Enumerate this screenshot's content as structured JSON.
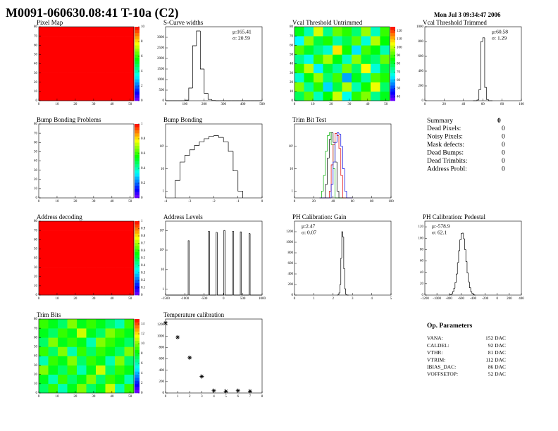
{
  "header": {
    "title": "M0091-060630.08:41 T-10a (C2)",
    "date": "Mon Jul  3 09:34:47 2006"
  },
  "chart_data": [
    {
      "type": "heatmap",
      "title": "Pixel Map",
      "xlim": [
        0,
        52
      ],
      "ylim": [
        0,
        80
      ],
      "xticks": [
        0,
        10,
        20,
        30,
        40,
        50
      ],
      "yticks": [
        0,
        10,
        20,
        30,
        40,
        50,
        60,
        70,
        80
      ],
      "zlim": [
        0,
        10
      ],
      "zticks": [
        0,
        2,
        4,
        6,
        8,
        10
      ],
      "z": [
        [
          10,
          10,
          10,
          10,
          10,
          10,
          10,
          10,
          10,
          10
        ],
        [
          10,
          10,
          10,
          10,
          10,
          10,
          10,
          10,
          10,
          10
        ],
        [
          10,
          10,
          10,
          10,
          10,
          10,
          10,
          10,
          10,
          10
        ],
        [
          10,
          10,
          10,
          10,
          10,
          10,
          10,
          10,
          10,
          10
        ],
        [
          10,
          10,
          10,
          10,
          10,
          10,
          10,
          10,
          10,
          10
        ],
        [
          10,
          10,
          10,
          10,
          10,
          10,
          10,
          10,
          10,
          10
        ],
        [
          10,
          10,
          10,
          10,
          10,
          10,
          10,
          10,
          10,
          10
        ],
        [
          10,
          10,
          10,
          10,
          10,
          10,
          10,
          10,
          10,
          10
        ]
      ]
    },
    {
      "type": "histogram",
      "title": "S-Curve widths",
      "color": "#000000",
      "xlim": [
        0,
        500
      ],
      "ylim": [
        0,
        3500
      ],
      "xticks": [
        0,
        100,
        200,
        300,
        400,
        500
      ],
      "yticks": [
        0,
        500,
        1000,
        1500,
        2000,
        2500,
        3000
      ],
      "bins": [
        0,
        20,
        40,
        60,
        80,
        100,
        120,
        140,
        160,
        180,
        200,
        220,
        240,
        260,
        280,
        300,
        320,
        340,
        360,
        380,
        400,
        420,
        440,
        460,
        480,
        500
      ],
      "values": [
        0,
        0,
        0,
        0,
        0,
        30,
        600,
        2600,
        3300,
        1500,
        350,
        60,
        10,
        0,
        0,
        0,
        0,
        0,
        0,
        0,
        0,
        0,
        0,
        0,
        0
      ],
      "stats": [
        "μ:165.41",
        "σ: 20.59"
      ]
    },
    {
      "type": "heatmap",
      "title": "Vcal Threshold Untrimmed",
      "xlim": [
        0,
        52
      ],
      "ylim": [
        0,
        80
      ],
      "xticks": [
        0,
        10,
        20,
        30,
        40,
        50
      ],
      "yticks": [
        0,
        10,
        20,
        30,
        40,
        50,
        60,
        70,
        80
      ],
      "zlim": [
        35,
        125
      ],
      "zticks": [
        40,
        50,
        60,
        70,
        80,
        90,
        100,
        110,
        120
      ],
      "z": [
        [
          78,
          92,
          70,
          85,
          101,
          66,
          88,
          95,
          74,
          83
        ],
        [
          95,
          73,
          88,
          62,
          80,
          99,
          71,
          86,
          104,
          77
        ],
        [
          69,
          84,
          97,
          76,
          90,
          58,
          83,
          72,
          91,
          87
        ],
        [
          88,
          100,
          64,
          81,
          73,
          94,
          77,
          105,
          68,
          80
        ],
        [
          74,
          67,
          89,
          98,
          84,
          70,
          96,
          81,
          76,
          93
        ],
        [
          91,
          82,
          75,
          69,
          107,
          86,
          63,
          90,
          84,
          71
        ],
        [
          65,
          96,
          80,
          87,
          72,
          79,
          92,
          68,
          99,
          85
        ],
        [
          83,
          71,
          102,
          74,
          93,
          88,
          76,
          97,
          70,
          89
        ]
      ]
    },
    {
      "type": "histogram",
      "title": "Vcal Threshold Trimmed",
      "color": "#000000",
      "xlim": [
        0,
        100
      ],
      "ylim": [
        0,
        1000
      ],
      "xticks": [
        0,
        20,
        40,
        60,
        80,
        100
      ],
      "yticks": [
        0,
        200,
        400,
        600,
        800,
        1000
      ],
      "bins": [
        50,
        52,
        54,
        56,
        58,
        60,
        62,
        64,
        66,
        68,
        70
      ],
      "values": [
        0,
        0,
        10,
        150,
        800,
        850,
        180,
        15,
        0,
        0
      ],
      "stats": [
        "μ:60.58",
        "σ: 1.29"
      ]
    },
    {
      "type": "heatmap",
      "title": "Bump Bonding Problems",
      "xlim": [
        0,
        52
      ],
      "ylim": [
        0,
        80
      ],
      "xticks": [
        0,
        10,
        20,
        30,
        40,
        50
      ],
      "yticks": [
        0,
        10,
        20,
        30,
        40,
        50,
        60,
        70,
        80
      ],
      "zlim": [
        0,
        1
      ],
      "zticks": [
        0,
        0.2,
        0.4,
        0.6,
        0.8,
        1
      ]
    },
    {
      "type": "histogram",
      "title": "Bump Bonding",
      "color": "#000000",
      "log_y": true,
      "xlim": [
        -4,
        0
      ],
      "ylim": [
        0.5,
        1000
      ],
      "xticks": [
        -4,
        -3,
        -2,
        -1,
        0
      ],
      "yticks": [
        1,
        10,
        {
          "value": 100,
          "label": "10²"
        }
      ],
      "bins": [
        -3.6,
        -3.4,
        -3.2,
        -3,
        -2.8,
        -2.6,
        -2.4,
        -2.2,
        -2,
        -1.8,
        -1.6,
        -1.4,
        -1.2,
        -1,
        -0.8
      ],
      "values": [
        3,
        20,
        40,
        70,
        110,
        160,
        220,
        280,
        300,
        250,
        160,
        60,
        8,
        1
      ]
    },
    {
      "type": "histogram",
      "title": "Trim Bit Test",
      "log_y": true,
      "xlim": [
        0,
        100
      ],
      "ylim": [
        0.5,
        1000
      ],
      "xticks": [
        0,
        20,
        40,
        60,
        80,
        100
      ],
      "yticks": [
        1,
        10,
        {
          "value": 100,
          "label": "10²"
        }
      ],
      "bins": [
        26,
        28,
        30,
        32,
        34,
        36,
        38,
        40,
        42,
        44,
        46,
        48,
        50,
        52,
        54,
        56,
        58,
        60
      ],
      "series": [
        {
          "color": "#000000",
          "values": [
            0,
            0,
            0,
            2,
            30,
            200,
            400,
            150,
            20,
            1,
            0,
            0,
            0,
            0,
            0,
            0,
            0
          ]
        },
        {
          "color": "#00b000",
          "values": [
            0,
            1,
            5,
            60,
            300,
            400,
            120,
            10,
            0,
            0,
            0,
            0,
            0,
            0,
            0,
            0,
            0
          ]
        },
        {
          "color": "#e00000",
          "values": [
            0,
            0,
            0,
            0,
            0,
            1,
            15,
            120,
            380,
            300,
            80,
            5,
            0,
            0,
            0,
            0,
            0
          ]
        },
        {
          "color": "#0000e0",
          "values": [
            0,
            0,
            0,
            0,
            0,
            0,
            2,
            20,
            150,
            400,
            350,
            100,
            10,
            1,
            0,
            0,
            0
          ]
        }
      ]
    },
    {
      "type": "heatmap",
      "title": "Address decoding",
      "xlim": [
        0,
        52
      ],
      "ylim": [
        0,
        80
      ],
      "xticks": [
        0,
        10,
        20,
        30,
        40,
        50
      ],
      "yticks": [
        0,
        10,
        20,
        30,
        40,
        50,
        60,
        70,
        80
      ],
      "zlim": [
        0,
        1
      ],
      "zticks": [
        0,
        0.1,
        0.2,
        0.3,
        0.4,
        0.5,
        0.6,
        0.7,
        0.8,
        0.9,
        1
      ],
      "z": [
        [
          1,
          1,
          1,
          1,
          1,
          1,
          1,
          1,
          1,
          1
        ],
        [
          1,
          1,
          1,
          1,
          1,
          1,
          1,
          1,
          1,
          1
        ],
        [
          1,
          1,
          1,
          1,
          1,
          1,
          1,
          1,
          1,
          1
        ],
        [
          1,
          1,
          1,
          1,
          1,
          1,
          1,
          1,
          1,
          1
        ],
        [
          1,
          1,
          1,
          1,
          1,
          1,
          1,
          1,
          1,
          1
        ],
        [
          1,
          1,
          1,
          1,
          1,
          1,
          1,
          1,
          1,
          1
        ],
        [
          1,
          1,
          1,
          1,
          1,
          1,
          1,
          1,
          1,
          1
        ],
        [
          1,
          1,
          1,
          1,
          1,
          1,
          1,
          1,
          1,
          1
        ]
      ]
    },
    {
      "type": "histogram",
      "title": "Address Levels",
      "color": "#000000",
      "log_y": true,
      "xlim": [
        -1500,
        1000
      ],
      "ylim": [
        0.5,
        3000
      ],
      "xticks": [
        -1500,
        -1000,
        -500,
        0,
        500,
        1000
      ],
      "yticks": [
        1,
        10,
        {
          "value": 100,
          "label": "10²"
        },
        {
          "value": 1000,
          "label": "10³"
        }
      ],
      "bins": [
        -1500,
        -915,
        -885,
        -390,
        -360,
        -190,
        -160,
        10,
        40,
        235,
        265,
        435,
        465,
        660,
        690,
        1000
      ],
      "values": [
        0,
        300,
        0,
        900,
        0,
        800,
        0,
        1000,
        0,
        900,
        0,
        850,
        0,
        700,
        0
      ]
    },
    {
      "type": "histogram",
      "title": "PH Calibration: Gain",
      "color": "#000000",
      "xlim": [
        0,
        5
      ],
      "ylim": [
        0,
        1400
      ],
      "xticks": [
        0,
        1,
        2,
        3,
        4,
        5
      ],
      "yticks": [
        0,
        200,
        400,
        600,
        800,
        1000,
        1200
      ],
      "bins": [
        2.2,
        2.25,
        2.3,
        2.35,
        2.4,
        2.45,
        2.5,
        2.55,
        2.6,
        2.65,
        2.7,
        2.75,
        2.8
      ],
      "values": [
        0,
        5,
        40,
        200,
        700,
        1200,
        1100,
        500,
        120,
        15,
        2,
        0
      ],
      "stats": [
        "μ:2.47",
        "σ: 0.07"
      ]
    },
    {
      "type": "histogram",
      "title": "PH Calibration: Pedestal",
      "color": "#000000",
      "xlim": [
        -1200,
        400
      ],
      "ylim": [
        0,
        130
      ],
      "xticks": [
        -1200,
        -1000,
        -800,
        -600,
        -400,
        -200,
        0,
        200,
        400
      ],
      "yticks": [
        0,
        20,
        40,
        60,
        80,
        100,
        120
      ],
      "bins": [
        -800,
        -780,
        -760,
        -740,
        -720,
        -700,
        -680,
        -660,
        -640,
        -620,
        -600,
        -580,
        -560,
        -540,
        -520,
        -500,
        -480,
        -460,
        -440,
        -420,
        -400,
        -380,
        -360
      ],
      "values": [
        0,
        1,
        2,
        6,
        12,
        22,
        37,
        57,
        78,
        97,
        108,
        109,
        99,
        80,
        59,
        39,
        23,
        13,
        6,
        3,
        1,
        0
      ],
      "stats": [
        "μ:-578.9",
        "σ: 62.1"
      ]
    },
    {
      "type": "heatmap",
      "title": "Trim Bits",
      "xlim": [
        0,
        52
      ],
      "ylim": [
        0,
        80
      ],
      "xticks": [
        0,
        10,
        20,
        30,
        40,
        50
      ],
      "yticks": [
        0,
        10,
        20,
        30,
        40,
        50,
        60,
        70,
        80
      ],
      "zlim": [
        0,
        15
      ],
      "zticks": [
        0,
        2,
        4,
        6,
        8,
        10,
        12,
        14
      ],
      "z": [
        [
          7,
          9,
          6,
          8,
          10,
          7,
          8,
          11,
          6,
          9
        ],
        [
          8,
          6,
          9,
          7,
          8,
          10,
          7,
          9,
          8,
          6
        ],
        [
          10,
          8,
          7,
          9,
          6,
          8,
          11,
          7,
          9,
          8
        ],
        [
          6,
          9,
          8,
          10,
          7,
          9,
          8,
          6,
          10,
          7
        ],
        [
          9,
          7,
          10,
          6,
          9,
          7,
          9,
          8,
          7,
          10
        ],
        [
          7,
          10,
          8,
          9,
          8,
          6,
          10,
          9,
          8,
          7
        ],
        [
          8,
          7,
          9,
          8,
          11,
          8,
          7,
          10,
          9,
          8
        ],
        [
          9,
          8,
          7,
          10,
          8,
          9,
          8,
          7,
          6,
          9
        ]
      ]
    },
    {
      "type": "scatter",
      "title": "Temperature calibration",
      "color": "#000000",
      "xlim": [
        0,
        8
      ],
      "ylim": [
        0,
        1300
      ],
      "xticks": [
        0,
        1,
        2,
        3,
        4,
        5,
        6,
        7,
        8
      ],
      "yticks": [
        0,
        200,
        400,
        600,
        800,
        1000,
        1200
      ],
      "x": [
        0,
        1,
        2,
        3,
        4,
        5,
        6,
        7
      ],
      "values": [
        1230,
        980,
        620,
        290,
        40,
        30,
        40,
        30
      ]
    }
  ],
  "summary": {
    "title": "Summary",
    "count": 0,
    "rows": [
      {
        "label": "Dead Pixels:",
        "value": 0
      },
      {
        "label": "Noisy Pixels:",
        "value": 0
      },
      {
        "label": "Mask defects:",
        "value": 0
      },
      {
        "label": "Dead Bumps:",
        "value": 0
      },
      {
        "label": "Dead Trimbits:",
        "value": 0
      },
      {
        "label": "Address Probl:",
        "value": 0
      }
    ]
  },
  "op_parameters": {
    "title": "Op. Parameters",
    "rows": [
      {
        "label": "VANA:",
        "value": "152 DAC"
      },
      {
        "label": "CALDEL:",
        "value": "92 DAC"
      },
      {
        "label": "VTHR:",
        "value": "81 DAC"
      },
      {
        "label": "VTRIM:",
        "value": "112 DAC"
      },
      {
        "label": "IBIAS_DAC:",
        "value": "86 DAC"
      },
      {
        "label": "VOFFSETOP:",
        "value": "52 DAC"
      }
    ]
  }
}
